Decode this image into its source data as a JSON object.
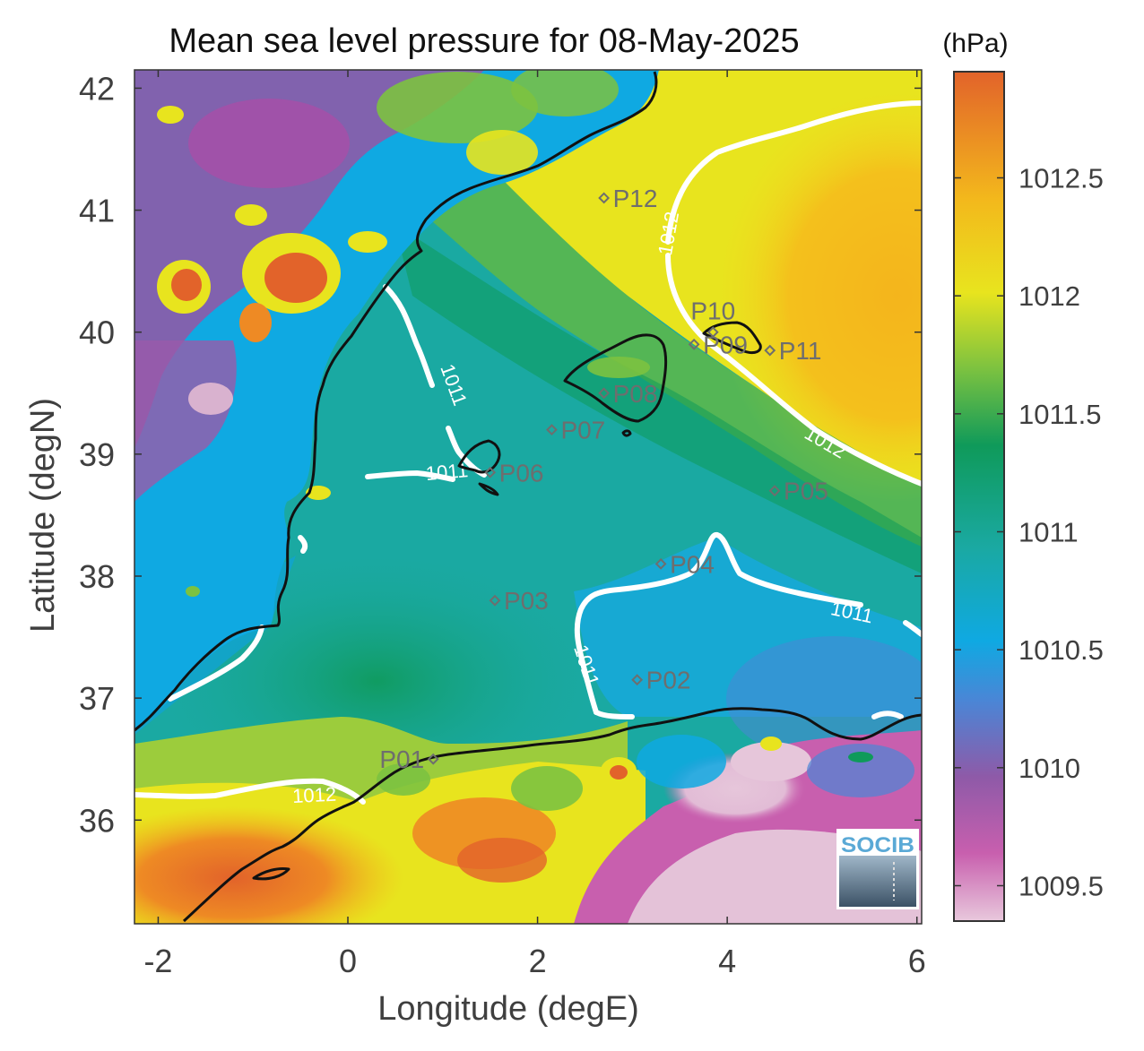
{
  "figure": {
    "title": "Mean sea level pressure for 08-May-2025",
    "xlabel": "Longitude (degE)",
    "ylabel": "Latitude (degN)",
    "unit_label": "(hPa)",
    "logo_text": "SOCIB"
  },
  "chart_data": {
    "type": "heatmap",
    "title": "Mean sea level pressure for 08-May-2025",
    "xlabel": "Longitude (degE)",
    "ylabel": "Latitude (degN)",
    "xlim": [
      -2.25,
      6.05
    ],
    "ylim": [
      35.15,
      42.15
    ],
    "xticks": [
      -2,
      0,
      2,
      4,
      6
    ],
    "xtick_labels": [
      "-2",
      "0",
      "2",
      "4",
      "6"
    ],
    "yticks": [
      36,
      37,
      38,
      39,
      40,
      41,
      42
    ],
    "ytick_labels": [
      "36",
      "37",
      "38",
      "39",
      "40",
      "41",
      "42"
    ],
    "colorbar": {
      "label": "(hPa)",
      "range": [
        1009.35,
        1012.95
      ],
      "ticks": [
        1009.5,
        1010,
        1010.5,
        1011,
        1011.5,
        1012,
        1012.5
      ],
      "tick_labels": [
        "1009.5",
        "1010",
        "1010.5",
        "1011",
        "1011.5",
        "1012",
        "1012.5"
      ],
      "colormap": [
        "#e8c8dc",
        "#c85fae",
        "#8e5aa8",
        "#4a86d6",
        "#0fa9e2",
        "#1aa9a2",
        "#0f9a5a",
        "#7cc240",
        "#e8e41e",
        "#f3b81c",
        "#e2632a"
      ]
    },
    "contours": [
      {
        "level": "1011",
        "label_lon": 1.05,
        "label_lat": 38.8
      },
      {
        "level": "1011",
        "label_lon": 1.05,
        "label_lat": 39.55
      },
      {
        "level": "1011",
        "label_lon": 2.45,
        "label_lat": 37.25
      },
      {
        "level": "1011",
        "label_lon": 5.3,
        "label_lat": 37.65
      },
      {
        "level": "1012",
        "label_lon": -0.35,
        "label_lat": 36.15
      },
      {
        "level": "1012",
        "label_lon": 3.45,
        "label_lat": 40.8
      },
      {
        "level": "1012",
        "label_lon": 5.0,
        "label_lat": 39.05
      }
    ],
    "stations": [
      {
        "name": "P01",
        "lon": 0.9,
        "lat": 36.5
      },
      {
        "name": "P02",
        "lon": 3.05,
        "lat": 37.15
      },
      {
        "name": "P03",
        "lon": 1.55,
        "lat": 37.8
      },
      {
        "name": "P04",
        "lon": 3.3,
        "lat": 38.1
      },
      {
        "name": "P05",
        "lon": 4.5,
        "lat": 38.7
      },
      {
        "name": "P06",
        "lon": 1.5,
        "lat": 38.85
      },
      {
        "name": "P07",
        "lon": 2.15,
        "lat": 39.2
      },
      {
        "name": "P08",
        "lon": 2.7,
        "lat": 39.5
      },
      {
        "name": "P09",
        "lon": 3.65,
        "lat": 39.9
      },
      {
        "name": "P10",
        "lon": 3.85,
        "lat": 40.0
      },
      {
        "name": "P11",
        "lon": 4.45,
        "lat": 39.85
      },
      {
        "name": "P12",
        "lon": 2.7,
        "lat": 41.1
      }
    ]
  },
  "colors": {
    "contour": "#ffffff",
    "coastline": "#111111",
    "station": "#6e6e6e",
    "axis_text": "#3f3f3f"
  }
}
